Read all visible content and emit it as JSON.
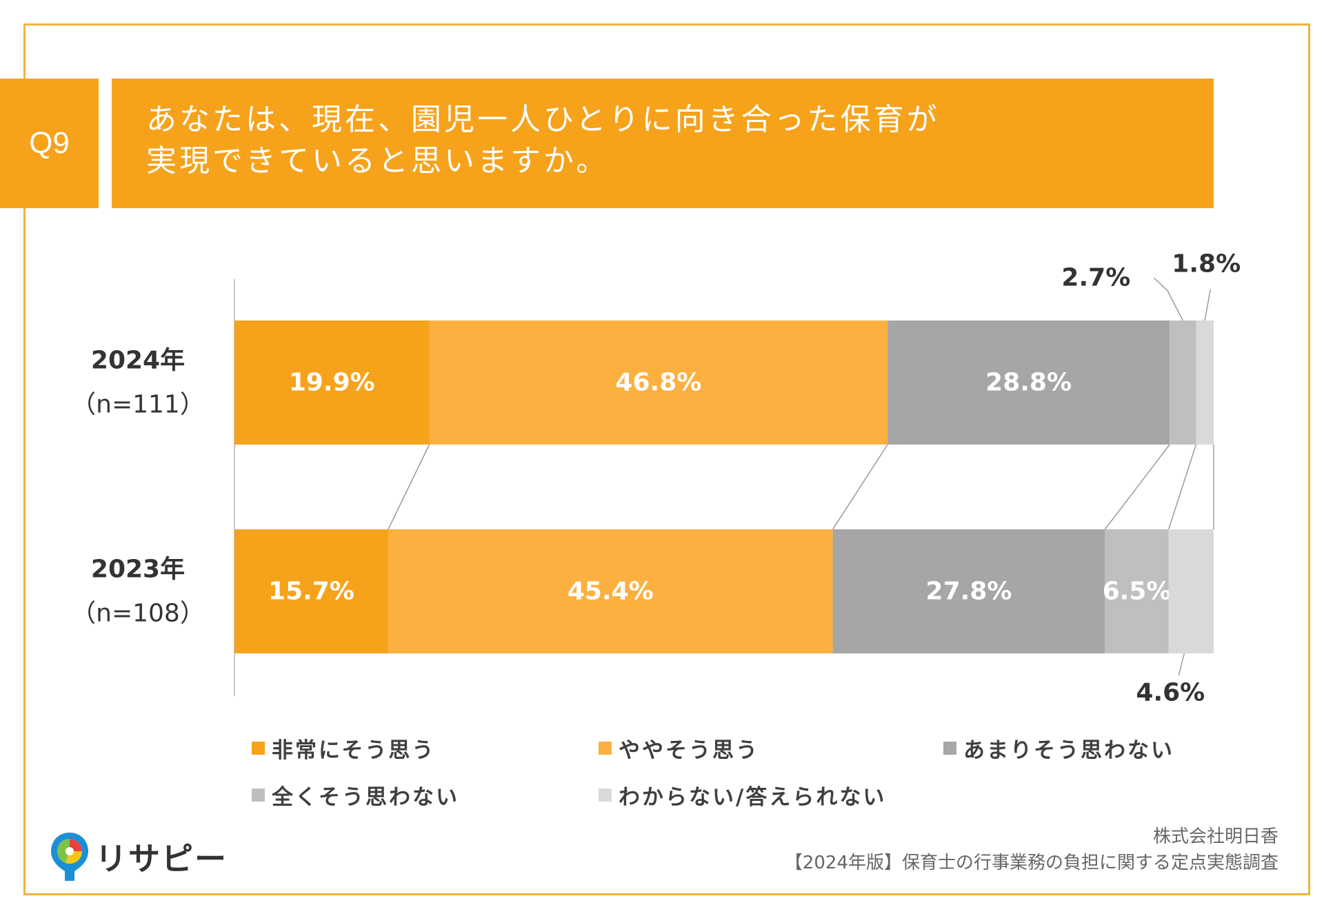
{
  "question": {
    "badge": "Q9",
    "title_line1": "あなたは、現在、園児一人ひとりに向き合った保育が",
    "title_line2": "実現できていると思いますか。"
  },
  "chart_data": {
    "type": "bar",
    "orientation": "horizontal-stacked-100",
    "title": "あなたは、現在、園児一人ひとりに向き合った保育が実現できていると思いますか。",
    "categories": [
      {
        "year": "2024年",
        "n": "（n=111）"
      },
      {
        "year": "2023年",
        "n": "（n=108）"
      }
    ],
    "series": [
      {
        "name": "非常にそう思う",
        "color": "#f7a21b",
        "label_color": "#ffffff",
        "values": [
          19.9,
          15.7
        ],
        "labels": [
          "19.9%",
          "15.7%"
        ]
      },
      {
        "name": "ややそう思う",
        "color": "#fbb040",
        "label_color": "#ffffff",
        "values": [
          46.8,
          45.4
        ],
        "labels": [
          "46.8%",
          "45.4%"
        ]
      },
      {
        "name": "あまりそう思わない",
        "color": "#a6a6a6",
        "label_color": "#ffffff",
        "values": [
          28.8,
          27.8
        ],
        "labels": [
          "28.8%",
          "27.8%"
        ]
      },
      {
        "name": "全くそう思わない",
        "color": "#bfbfbf",
        "label_color": "#ffffff",
        "values": [
          2.7,
          6.5
        ],
        "labels": [
          "2.7%",
          "6.5%"
        ]
      },
      {
        "name": "わからない/答えられない",
        "color": "#d9d9d9",
        "label_color": "#ffffff",
        "values": [
          1.8,
          4.6
        ],
        "labels": [
          "1.8%",
          "4.6%"
        ]
      }
    ],
    "xlim": [
      0,
      100
    ],
    "legend_position": "bottom"
  },
  "footer": {
    "company": "株式会社明日香",
    "survey": "【2024年版】保育士の行事業務の負担に関する定点実態調査"
  },
  "logo": {
    "text": "リサピー",
    "icon": "pin-logo-icon"
  }
}
